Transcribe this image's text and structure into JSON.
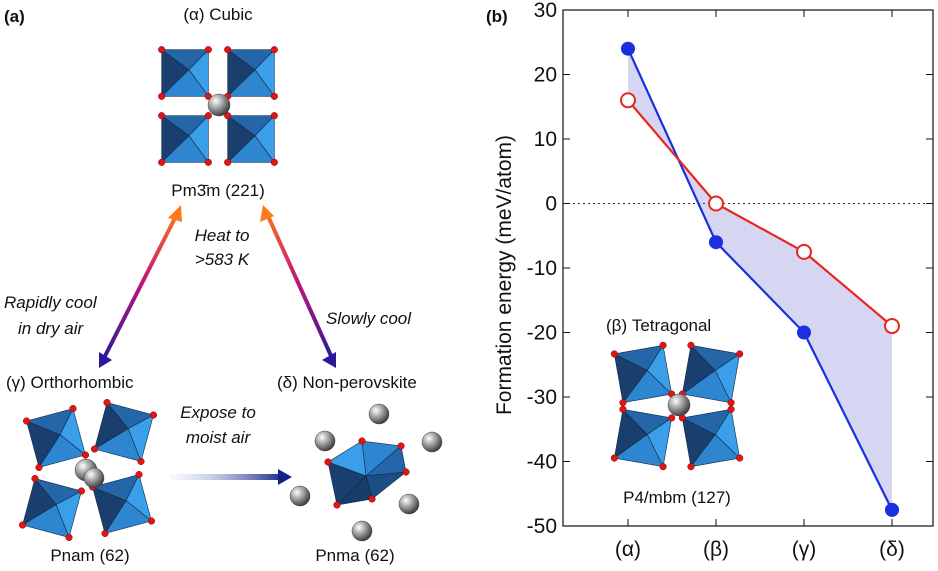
{
  "panel_a": {
    "label": "(a)",
    "cubic": {
      "title": "(α) Cubic",
      "space_group": "Pm3̄m (221)"
    },
    "orthorhombic": {
      "title": "(γ) Orthorhombic",
      "space_group": "Pnam (62)"
    },
    "nonperovskite": {
      "title": "(δ) Non-perovskite",
      "space_group": "Pnma (62)"
    },
    "arrows": {
      "heat_line1": "Heat to",
      "heat_line2": ">583 K",
      "rapid_line1": "Rapidly cool",
      "rapid_line2": "in dry air",
      "slow": "Slowly cool",
      "moist_line1": "Expose to",
      "moist_line2": "moist air"
    }
  },
  "panel_b": {
    "label": "(b)",
    "inset": {
      "title": "(β) Tetragonal",
      "space_group": "P4/mbm (127)"
    }
  },
  "chart_data": {
    "type": "line",
    "ylabel": "Formation energy (meV/atom)",
    "xlabel": "",
    "categories": [
      "(α)",
      "(β)",
      "(γ)",
      "(δ)"
    ],
    "ylim": [
      -50,
      30
    ],
    "yticks": [
      30,
      20,
      10,
      0,
      -10,
      -20,
      -30,
      -40,
      -50
    ],
    "reference_line": 0,
    "series": [
      {
        "name": "filled-blue",
        "color": "#1a2fe0",
        "marker": "filled-circle",
        "values": [
          24,
          -6,
          -20,
          -47.5
        ]
      },
      {
        "name": "open-red",
        "color": "#e8261e",
        "marker": "open-circle",
        "values": [
          16,
          0,
          -7.5,
          -19
        ]
      }
    ],
    "fill_between_color": "#c8c8ef"
  },
  "colors": {
    "octa_light": "#3a9fe8",
    "octa_dark": "#1a3f6e",
    "oxygen": "#e01616",
    "cation": "#888888"
  }
}
